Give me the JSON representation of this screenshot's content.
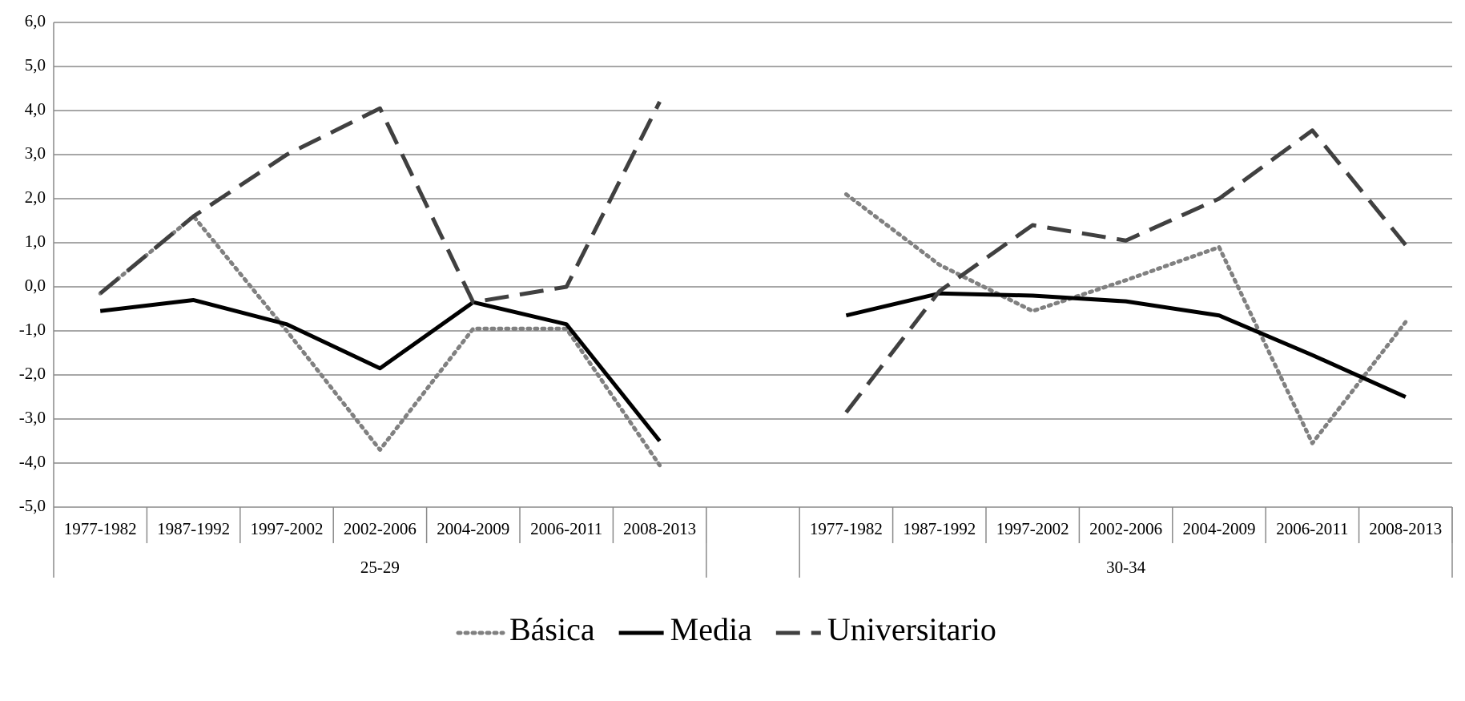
{
  "chart_data": {
    "type": "line",
    "categories": [
      "1977-1982",
      "1987-1992",
      "1997-2002",
      "2002-2006",
      "2004-2009",
      "2006-2011",
      "2008-2013",
      null,
      "1977-1982",
      "1987-1992",
      "1997-2002",
      "2002-2006",
      "2004-2009",
      "2006-2011",
      "2008-2013"
    ],
    "groups": [
      "25-29",
      "30-34"
    ],
    "series": [
      {
        "name": "Básica",
        "color": "#808080",
        "style": "dotted",
        "values": [
          -0.15,
          1.6,
          -1.0,
          -3.7,
          -0.95,
          -0.95,
          -4.05,
          null,
          2.1,
          0.5,
          -0.55,
          0.15,
          0.9,
          -3.55,
          -0.8
        ]
      },
      {
        "name": "Media",
        "color": "#000000",
        "style": "solid",
        "values": [
          -0.55,
          -0.3,
          -0.85,
          -1.85,
          -0.35,
          -0.85,
          -3.5,
          null,
          -0.65,
          -0.15,
          -0.2,
          -0.33,
          -0.65,
          -1.55,
          -2.5
        ]
      },
      {
        "name": "Universitario",
        "color": "#404040",
        "style": "dashed",
        "values": [
          -0.15,
          1.6,
          3.0,
          4.05,
          -0.35,
          0.0,
          4.2,
          null,
          -2.85,
          -0.1,
          1.4,
          1.05,
          2.0,
          3.55,
          0.95
        ]
      }
    ],
    "ylim": [
      -5,
      6
    ],
    "yticks": [
      {
        "value": -5,
        "label": "-5,0"
      },
      {
        "value": -4,
        "label": "-4,0"
      },
      {
        "value": -3,
        "label": "-3,0"
      },
      {
        "value": -2,
        "label": "-2,0"
      },
      {
        "value": -1,
        "label": "-1,0"
      },
      {
        "value": 0,
        "label": "0,0"
      },
      {
        "value": 1,
        "label": "1,0"
      },
      {
        "value": 2,
        "label": "2,0"
      },
      {
        "value": 3,
        "label": "3,0"
      },
      {
        "value": 4,
        "label": "4,0"
      },
      {
        "value": 5,
        "label": "5,0"
      },
      {
        "value": 6,
        "label": "6,0"
      }
    ],
    "grid": true,
    "legend": "bottom"
  }
}
